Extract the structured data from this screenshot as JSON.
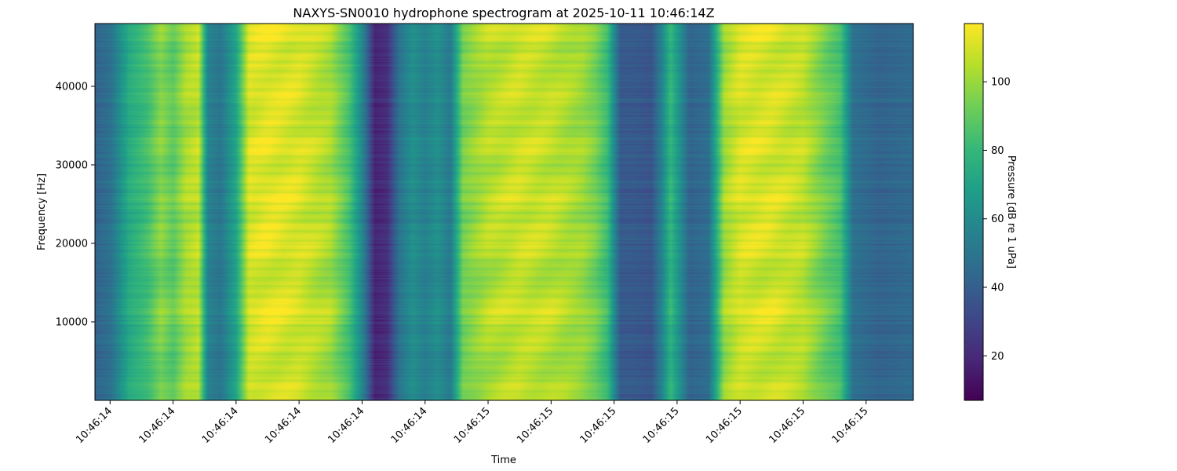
{
  "chart_data": {
    "type": "heatmap",
    "title": "NAXYS-SN0010 hydrophone spectrogram at 2025-10-11 10:46:14Z",
    "xlabel": "Time",
    "ylabel": "Frequency [Hz]",
    "colorbar_label": "Pressure [dB re 1 uPa]",
    "colormap": "viridis",
    "ylim": [
      0,
      48000
    ],
    "clim": [
      7,
      117
    ],
    "x_tick_labels": [
      "10:46:14",
      "10:46:14",
      "10:46:14",
      "10:46:14",
      "10:46:14",
      "10:46:14",
      "10:46:15",
      "10:46:15",
      "10:46:15",
      "10:46:15",
      "10:46:15",
      "10:46:15",
      "10:46:15"
    ],
    "y_ticks": [
      10000,
      20000,
      30000,
      40000
    ],
    "y_tick_labels": [
      "10000",
      "20000",
      "30000",
      "40000"
    ],
    "colorbar_ticks": [
      20,
      40,
      60,
      80,
      100
    ],
    "colorbar_tick_labels": [
      "20",
      "40",
      "60",
      "80",
      "100"
    ],
    "x_range": [
      -0.24,
      12.75
    ],
    "time_profile": {
      "x": [
        -0.24,
        0.0,
        0.3,
        0.6,
        0.8,
        1.0,
        1.2,
        1.4,
        1.55,
        1.75,
        2.0,
        2.2,
        2.5,
        3.0,
        3.5,
        3.8,
        4.0,
        4.2,
        4.4,
        4.6,
        4.8,
        5.0,
        5.2,
        5.4,
        5.6,
        6.0,
        6.5,
        7.0,
        7.5,
        7.7,
        7.9,
        8.1,
        8.3,
        8.6,
        8.75,
        8.9,
        9.05,
        9.2,
        9.5,
        9.75,
        10.0,
        10.5,
        11.0,
        11.2,
        11.4,
        11.6,
        11.8,
        12.2,
        12.75
      ],
      "db": [
        42,
        48,
        75,
        85,
        98,
        90,
        104,
        108,
        56,
        50,
        72,
        112,
        114,
        112,
        104,
        85,
        58,
        18,
        22,
        50,
        62,
        55,
        62,
        52,
        95,
        106,
        110,
        108,
        102,
        95,
        82,
        38,
        38,
        36,
        55,
        80,
        62,
        42,
        46,
        102,
        112,
        112,
        108,
        100,
        92,
        85,
        48,
        42,
        45
      ]
    }
  }
}
